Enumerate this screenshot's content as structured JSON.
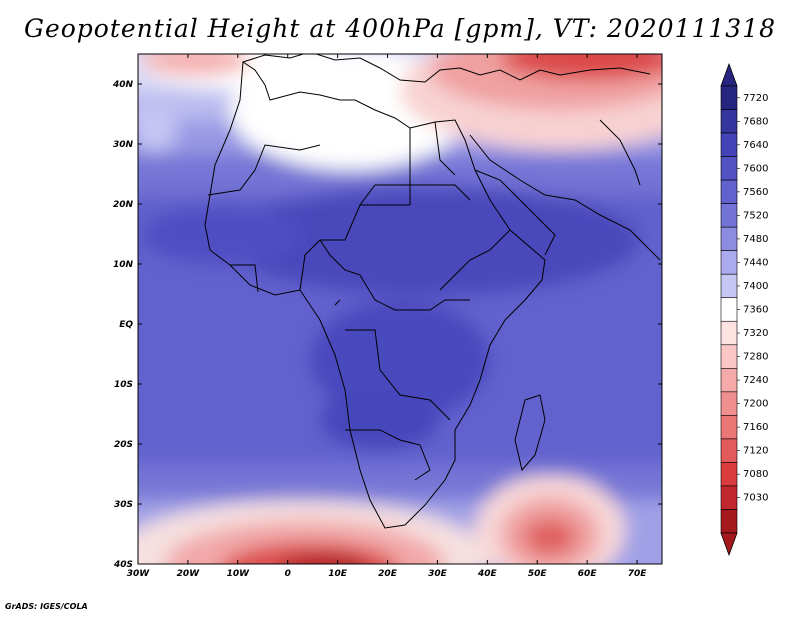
{
  "title": "Geopotential Height at 400hPa [gpm], VT: 2020111318",
  "credit": "GrADS: IGES/COLA",
  "chart_data": {
    "type": "heatmap",
    "variable": "Geopotential Height at 400hPa",
    "units": "gpm",
    "valid_time": "2020111318",
    "lon_range": [
      -30,
      75
    ],
    "lat_range": [
      -40,
      45
    ],
    "x_ticks": [
      "30W",
      "20W",
      "10W",
      "0",
      "10E",
      "20E",
      "30E",
      "40E",
      "50E",
      "60E",
      "70E"
    ],
    "y_ticks": [
      "40S",
      "30S",
      "20S",
      "10S",
      "EQ",
      "10N",
      "20N",
      "30N",
      "40N"
    ],
    "colorbar_levels": [
      7030,
      7080,
      7120,
      7160,
      7200,
      7240,
      7280,
      7320,
      7360,
      7400,
      7440,
      7480,
      7520,
      7560,
      7600,
      7640,
      7680,
      7720
    ],
    "colorbar_labels": [
      "7720",
      "7680",
      "7640",
      "7600",
      "7560",
      "7520",
      "7480",
      "7440",
      "7400",
      "7360",
      "7320",
      "7280",
      "7240",
      "7200",
      "7160",
      "7120",
      "7080",
      "7030"
    ],
    "colors": [
      "#a41a1c",
      "#c1272d",
      "#d83c3c",
      "#e25a5a",
      "#ea7676",
      "#f08f8f",
      "#f5aaaa",
      "#fac6c6",
      "#fde2e2",
      "#ffffff",
      "#e2e2fa",
      "#c6c6f4",
      "#aaaaec",
      "#8c8ce0",
      "#7474d6",
      "#6262ce",
      "#5252c4",
      "#4444b8",
      "#35359e",
      "#262680"
    ]
  }
}
